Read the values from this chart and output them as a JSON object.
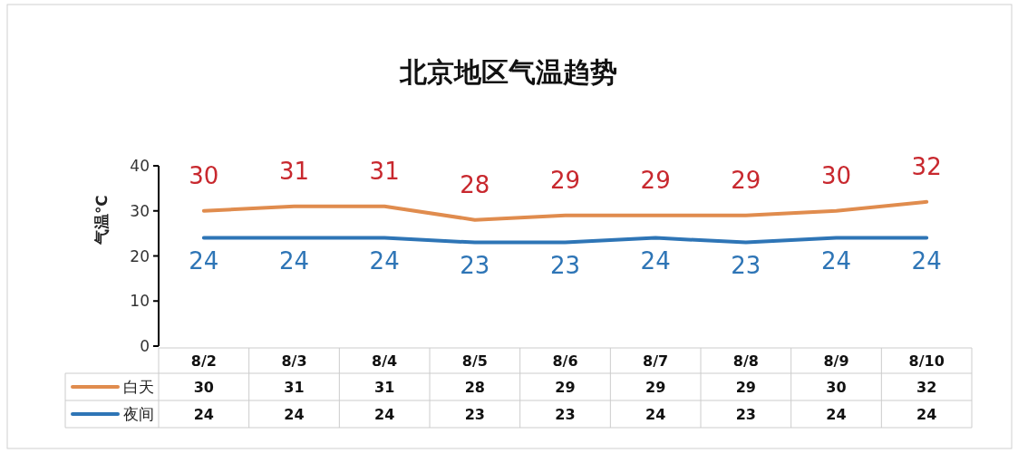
{
  "chart_data": {
    "type": "line",
    "title": "北京地区气温趋势",
    "ylabel": "气温℃",
    "categories": [
      "8/2",
      "8/3",
      "8/4",
      "8/5",
      "8/6",
      "8/7",
      "8/8",
      "8/9",
      "8/10"
    ],
    "series": [
      {
        "name": "白天",
        "color": "#e08c4e",
        "values": [
          30,
          31,
          31,
          28,
          29,
          29,
          29,
          30,
          32
        ]
      },
      {
        "name": "夜间",
        "color": "#2e75b6",
        "values": [
          24,
          24,
          24,
          23,
          23,
          24,
          23,
          24,
          24
        ]
      }
    ],
    "annotations": [
      {
        "text": "30",
        "x": "8/2",
        "y": 30
      },
      {
        "text": "31",
        "x": "8/3",
        "y": 31
      },
      {
        "text": "31",
        "x": "8/4",
        "y": 31
      },
      {
        "text": "28",
        "x": "8/5",
        "y": 28
      },
      {
        "text": "29",
        "x": "8/6",
        "y": 29
      },
      {
        "text": "29",
        "x": "8/7",
        "y": 29
      },
      {
        "text": "29",
        "x": "8/8",
        "y": 29
      },
      {
        "text": "30",
        "x": "8/9",
        "y": 30
      },
      {
        "text": "32",
        "x": "8/10",
        "y": 32
      },
      {
        "text": "24",
        "x": "8/2",
        "y": 24
      },
      {
        "text": "24",
        "x": "8/3",
        "y": 24
      },
      {
        "text": "24",
        "x": "8/4",
        "y": 24
      },
      {
        "text": "23",
        "x": "8/5",
        "y": 23
      },
      {
        "text": "23",
        "x": "8/6",
        "y": 23
      },
      {
        "text": "24",
        "x": "8/7",
        "y": 24
      },
      {
        "text": "23",
        "x": "8/8",
        "y": 23
      },
      {
        "text": "24",
        "x": "8/9",
        "y": 24
      },
      {
        "text": "24",
        "x": "8/10",
        "y": 24
      }
    ],
    "ylim": [
      0,
      40
    ],
    "yticks": [
      0,
      10,
      20,
      30,
      40
    ],
    "data_labels": true,
    "legend": "bottom",
    "grid": false
  }
}
